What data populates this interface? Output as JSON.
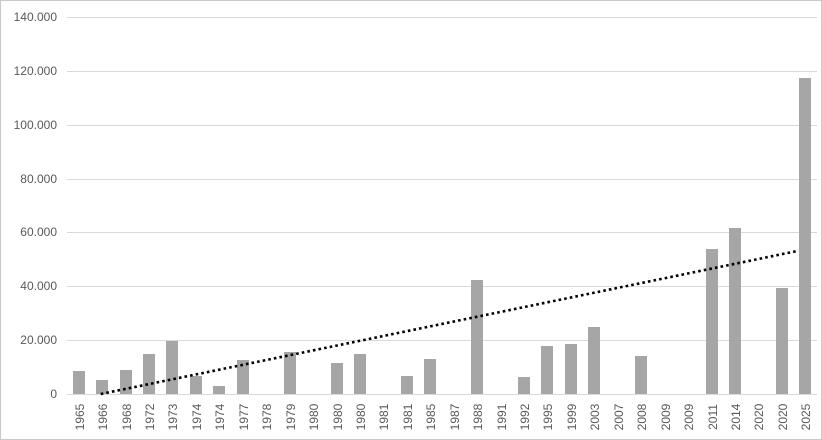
{
  "chart_data": {
    "type": "bar",
    "title": "",
    "xlabel": "",
    "ylabel": "",
    "legend": "none",
    "grid": true,
    "categories": [
      "1965",
      "1966",
      "1968",
      "1972",
      "1973",
      "1974",
      "1974",
      "1977",
      "1978",
      "1979",
      "1980",
      "1980",
      "1980",
      "1981",
      "1981",
      "1985",
      "1987",
      "1988",
      "1991",
      "1992",
      "1995",
      "1999",
      "2003",
      "2007",
      "2008",
      "2009",
      "2009",
      "2011",
      "2014",
      "2020",
      "2020",
      "2025"
    ],
    "values": [
      8500,
      5300,
      9000,
      14800,
      19500,
      6700,
      2900,
      12500,
      0,
      15600,
      0,
      11500,
      15000,
      0,
      6700,
      13000,
      0,
      42300,
      0,
      6400,
      17900,
      18500,
      25000,
      0,
      14200,
      0,
      0,
      54000,
      61700,
      0,
      39200,
      117200
    ],
    "y_axis": {
      "min": 0,
      "max": 140000,
      "tick_values": [
        0,
        20000,
        40000,
        60000,
        80000,
        100000,
        120000,
        140000
      ],
      "tick_labels": [
        "0",
        "20.000",
        "40.000",
        "60.000",
        "80.000",
        "100.000",
        "120.000",
        "140.000"
      ]
    },
    "trendline": {
      "style": "dotted",
      "color": "#000000",
      "x1_frac": 0.045,
      "y1_value": 0,
      "x2_frac": 0.972,
      "y2_value": 53000
    },
    "colors": {
      "bar": "#a6a6a6",
      "gridline": "#d9d9d9",
      "axis_text": "#595959",
      "background": "#ffffff",
      "border": "#c9c9c9"
    }
  }
}
